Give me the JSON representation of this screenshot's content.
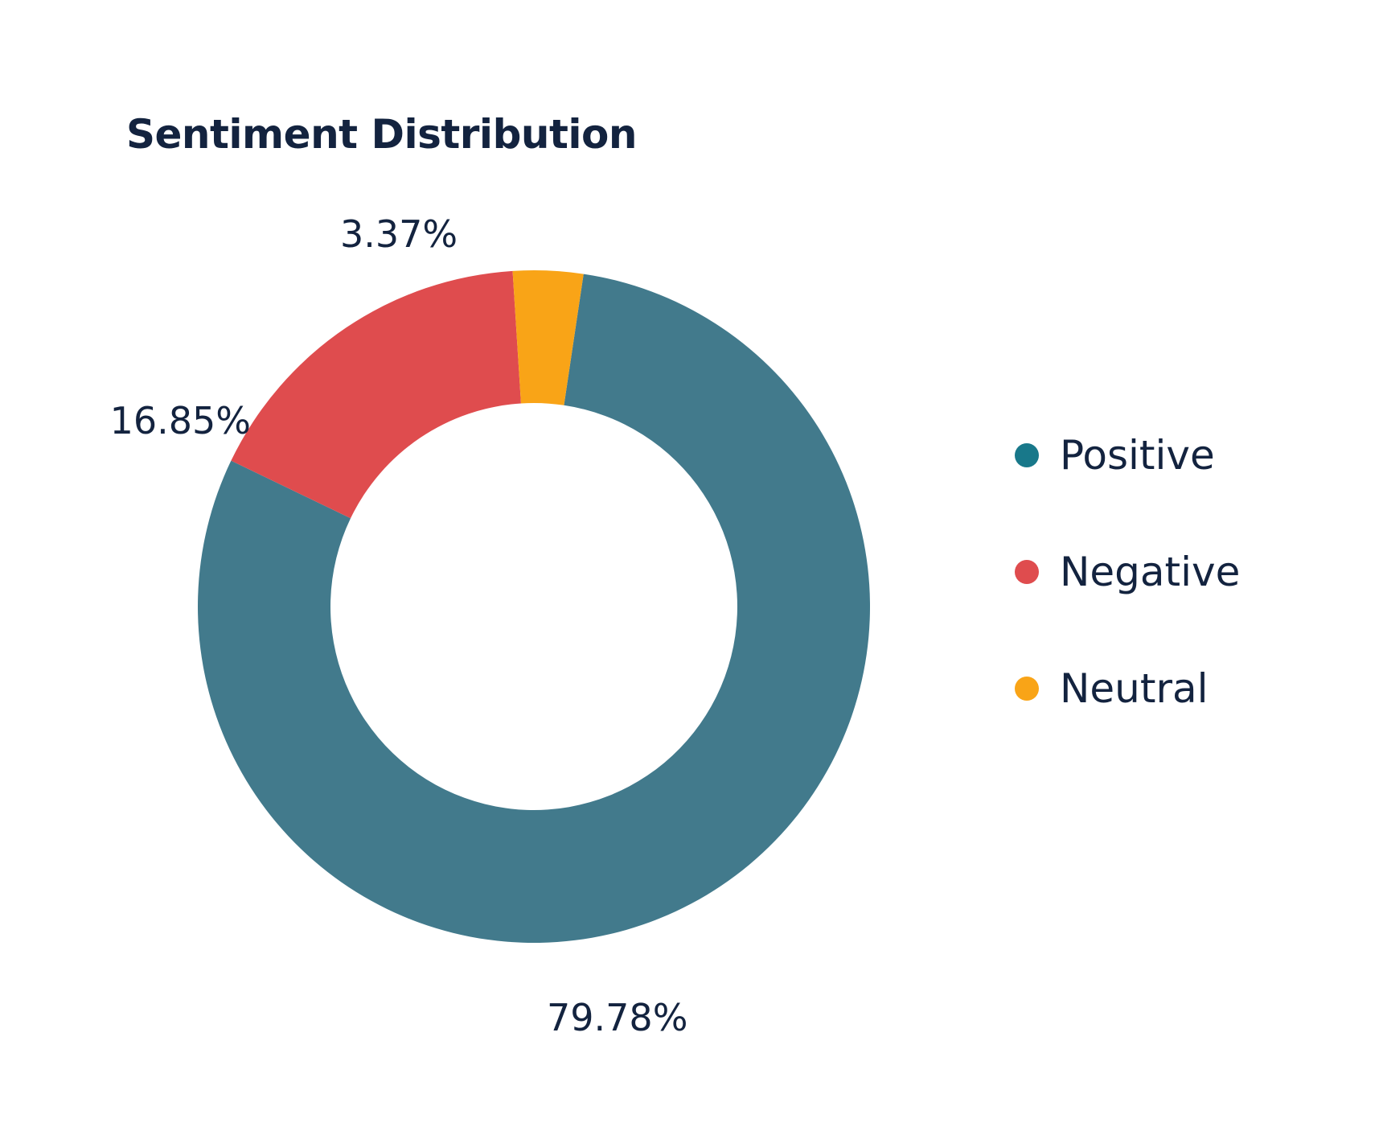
{
  "chart_data": {
    "type": "pie",
    "variant": "donut",
    "title": "Sentiment Distribution",
    "categories": [
      "Positive",
      "Negative",
      "Neutral"
    ],
    "values": [
      79.78,
      16.85,
      3.37
    ],
    "labels": [
      "79.78%",
      "16.85%",
      "3.37%"
    ],
    "colors": {
      "Positive": "#427a8c",
      "Negative": "#df4c4e",
      "Neutral": "#f9a417"
    },
    "legend_colors": {
      "Positive": "#18788a",
      "Negative": "#df4c4e",
      "Neutral": "#f9a417"
    },
    "legend_position": "right"
  },
  "legend": {
    "items": [
      {
        "label": "Positive"
      },
      {
        "label": "Negative"
      },
      {
        "label": "Neutral"
      }
    ]
  }
}
